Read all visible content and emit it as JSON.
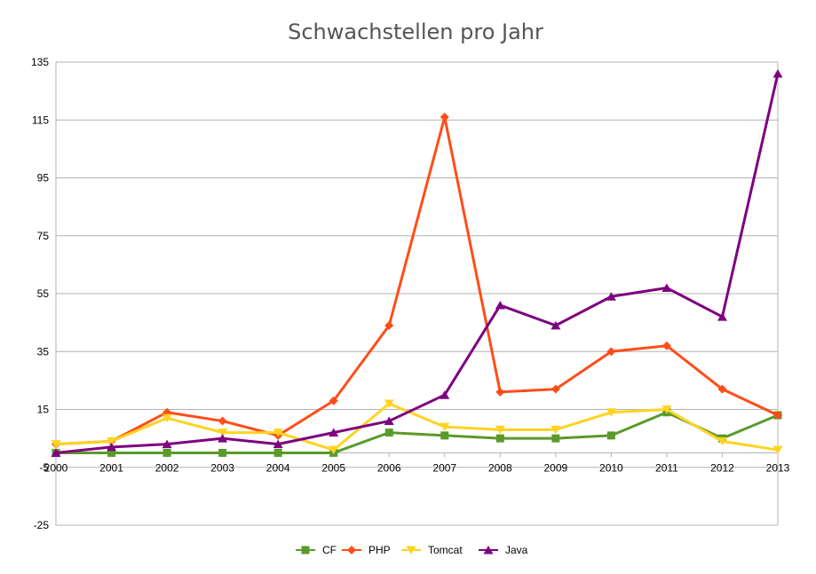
{
  "chart_data": {
    "type": "line",
    "title": "Schwachstellen pro Jahr",
    "xlabel": "",
    "ylabel": "",
    "x": [
      "2000",
      "2001",
      "2002",
      "2003",
      "2004",
      "2005",
      "2006",
      "2007",
      "2008",
      "2009",
      "2010",
      "2011",
      "2012",
      "2013"
    ],
    "ylim": [
      -25,
      135
    ],
    "yticks": [
      -25,
      -5,
      15,
      35,
      55,
      75,
      95,
      115,
      135
    ],
    "grid": "horizontal",
    "legend": "bottom",
    "series": [
      {
        "name": "CF",
        "color": "#5a9a2a",
        "marker": "square",
        "values": [
          0,
          0,
          0,
          0,
          0,
          0,
          7,
          6,
          5,
          5,
          6,
          14,
          5,
          13
        ]
      },
      {
        "name": "PHP",
        "color": "#ff4d19",
        "marker": "diamond",
        "values": [
          3,
          4,
          14,
          11,
          6,
          18,
          44,
          116,
          21,
          22,
          35,
          37,
          22,
          13
        ]
      },
      {
        "name": "Tomcat",
        "color": "#ffd320",
        "marker": "triangle-down",
        "values": [
          3,
          4,
          12,
          7,
          7,
          1,
          17,
          9,
          8,
          8,
          14,
          15,
          4,
          1
        ]
      },
      {
        "name": "Java",
        "color": "#7e0080",
        "marker": "triangle-up",
        "values": [
          0,
          2,
          3,
          5,
          3,
          7,
          11,
          20,
          51,
          44,
          54,
          57,
          47,
          131
        ]
      }
    ]
  }
}
